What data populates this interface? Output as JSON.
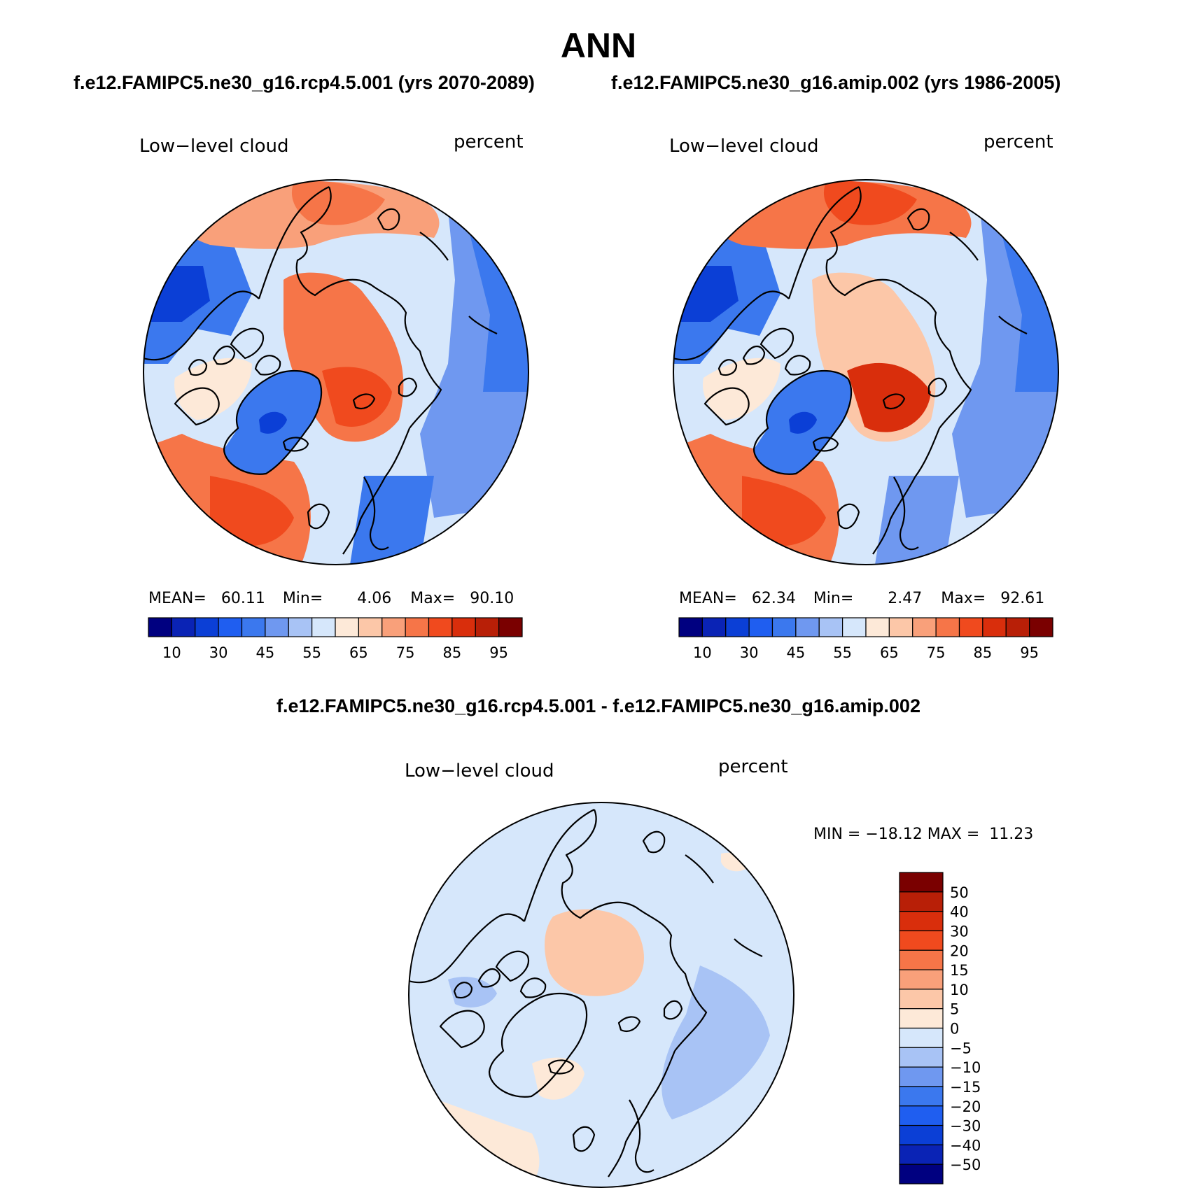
{
  "main_title": "ANN",
  "top_subtitle_left": "f.e12.FAMIPC5.ne30_g16.rcp4.5.001 (yrs 2070-2089)",
  "top_subtitle_right": "f.e12.FAMIPC5.ne30_g16.amip.002 (yrs 1986-2005)",
  "diff_title": "f.e12.FAMIPC5.ne30_g16.rcp4.5.001 - f.e12.FAMIPC5.ne30_g16.amip.002",
  "panels": [
    {
      "variable": "Low−level cloud",
      "units": "percent",
      "stats": {
        "mean_label": "MEAN=",
        "mean": "60.11",
        "min_label": "Min=",
        "min": "4.06",
        "max_label": "Max=",
        "max": "90.10"
      }
    },
    {
      "variable": "Low−level cloud",
      "units": "percent",
      "stats": {
        "mean_label": "MEAN=",
        "mean": "62.34",
        "min_label": "Min=",
        "min": "2.47",
        "max_label": "Max=",
        "max": "92.61"
      }
    },
    {
      "variable": "Low−level cloud",
      "units": "percent",
      "stats": {
        "text": "MIN = −18.12 MAX =  11.23"
      }
    }
  ],
  "abs_colorbar": {
    "colors": [
      "#000080",
      "#0a23b5",
      "#0b3fd6",
      "#1f5ef0",
      "#3b78ee",
      "#6f98f0",
      "#a8c3f5",
      "#d6e7fb",
      "#fde9d8",
      "#fcc7a8",
      "#f9a07a",
      "#f67548",
      "#f04a1e",
      "#d92e0c",
      "#b81f07",
      "#7a0000"
    ],
    "labels": [
      "10",
      "30",
      "45",
      "55",
      "65",
      "75",
      "85",
      "95"
    ]
  },
  "diff_colorbar": {
    "colors": [
      "#000080",
      "#0a23b5",
      "#0b3fd6",
      "#1f5ef0",
      "#3b78ee",
      "#6f98f0",
      "#a8c3f5",
      "#d6e7fb",
      "#fde9d8",
      "#fcc7a8",
      "#f9a07a",
      "#f67548",
      "#f04a1e",
      "#d92e0c",
      "#b81f07",
      "#7a0000"
    ],
    "labels": [
      "−50",
      "−40",
      "−30",
      "−20",
      "−15",
      "−10",
      "−5",
      "0",
      "5",
      "10",
      "15",
      "20",
      "30",
      "40",
      "50"
    ]
  }
}
